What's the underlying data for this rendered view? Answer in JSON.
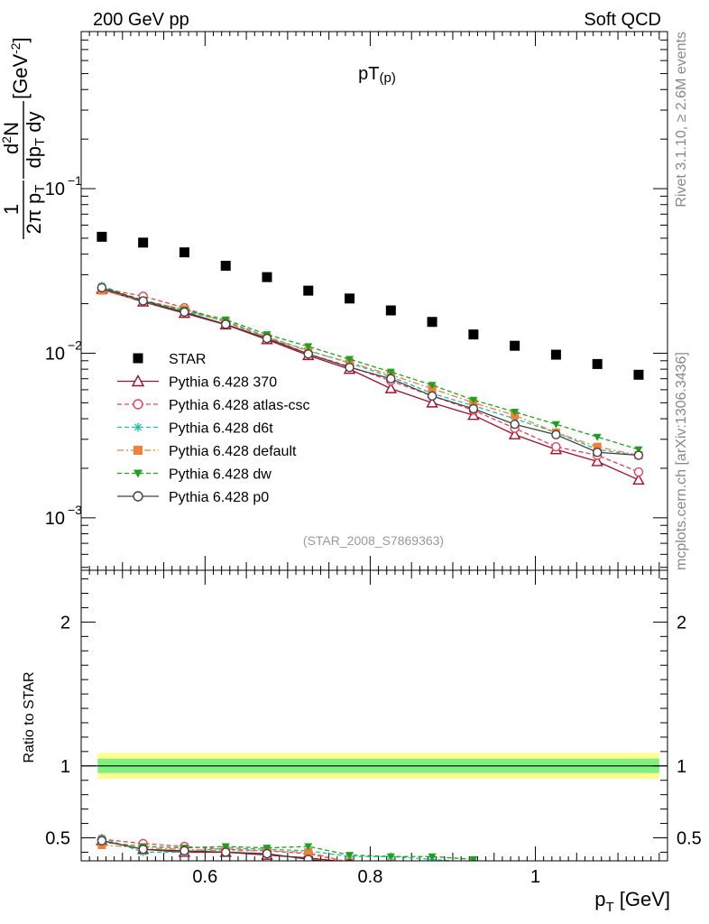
{
  "header": {
    "left": "200 GeV pp",
    "right": "Soft QCD"
  },
  "side_labels": {
    "rivet": "Rivet 3.1.10, ≥ 2.6M events",
    "mcplots": "mcplots.cern.ch [arXiv:1306.3436]"
  },
  "chart_data": [
    {
      "panel": "main",
      "type": "scatter",
      "title": "pT(p)",
      "title_main": "pT",
      "title_sub": "(p)",
      "analysis_label": "(STAR_2008_S7869363)",
      "ylabel": "1/(2π pT) d²N/(dpT dy) [GeV^-2]",
      "yscale": "log",
      "ylim": [
        0.00048,
        0.9
      ],
      "xlim": [
        0.45,
        1.16
      ],
      "ytick_labels": [
        "10^-3",
        "10^-2",
        "10^-1"
      ],
      "legend_position": "bottom-left",
      "x": [
        0.475,
        0.525,
        0.575,
        0.625,
        0.675,
        0.725,
        0.775,
        0.825,
        0.875,
        0.925,
        0.975,
        1.025,
        1.075,
        1.125
      ],
      "series": [
        {
          "name": "STAR",
          "color": "#000000",
          "marker": "square-filled",
          "line": "none",
          "values": [
            0.051,
            0.047,
            0.041,
            0.034,
            0.029,
            0.024,
            0.0215,
            0.0182,
            0.0155,
            0.013,
            0.0111,
            0.0098,
            0.0086,
            0.0074
          ]
        },
        {
          "name": "Pythia 6.428 370",
          "color": "#a0102a",
          "marker": "triangle-open",
          "line": "solid",
          "values": [
            0.0245,
            0.0205,
            0.0175,
            0.0149,
            0.0121,
            0.0097,
            0.008,
            0.0061,
            0.005,
            0.0042,
            0.0032,
            0.0026,
            0.0022,
            0.0017
          ]
        },
        {
          "name": "Pythia 6.428 atlas-csc",
          "color": "#e8405a",
          "marker": "circle-open",
          "line": "dashed",
          "values": [
            0.0248,
            0.0222,
            0.0189,
            0.0154,
            0.0125,
            0.0099,
            0.0083,
            0.0068,
            0.0055,
            0.0045,
            0.0035,
            0.0027,
            0.0024,
            0.0019
          ]
        },
        {
          "name": "Pythia 6.428 d6t",
          "color": "#20c0a0",
          "marker": "star",
          "line": "dashed",
          "values": [
            0.0258,
            0.0205,
            0.018,
            0.0157,
            0.0126,
            0.0104,
            0.0087,
            0.0072,
            0.0057,
            0.0048,
            0.004,
            0.0033,
            0.0026,
            0.0024
          ]
        },
        {
          "name": "Pythia 6.428 default",
          "color": "#f08040",
          "marker": "square-filled",
          "line": "dashdot",
          "values": [
            0.024,
            0.0208,
            0.0185,
            0.0155,
            0.0125,
            0.0103,
            0.0088,
            0.0074,
            0.0061,
            0.005,
            0.0042,
            0.0033,
            0.0027,
            0.0024
          ]
        },
        {
          "name": "Pythia 6.428 dw",
          "color": "#20a020",
          "marker": "triangle-down-filled",
          "line": "dashed",
          "values": [
            0.0252,
            0.021,
            0.0183,
            0.016,
            0.013,
            0.011,
            0.0092,
            0.0077,
            0.0064,
            0.0052,
            0.0044,
            0.0037,
            0.0031,
            0.0026
          ]
        },
        {
          "name": "Pythia 6.428 p0",
          "color": "#404040",
          "marker": "circle-open",
          "line": "solid",
          "values": [
            0.025,
            0.0208,
            0.0178,
            0.015,
            0.0123,
            0.0099,
            0.0082,
            0.007,
            0.0055,
            0.0046,
            0.0037,
            0.0032,
            0.0025,
            0.0024
          ]
        }
      ]
    },
    {
      "panel": "ratio",
      "type": "line",
      "ylabel": "Ratio to STAR",
      "xlabel": "p_T [GeV]",
      "xlabel_main": "p",
      "xlabel_sub": "T",
      "xlabel_unit": "[GeV]",
      "ylim": [
        0.34,
        2.36
      ],
      "xlim": [
        0.45,
        1.16
      ],
      "xtick_labels": [
        "0.6",
        "0.8",
        "1"
      ],
      "ytick_labels": [
        "0.5",
        "1",
        "2"
      ],
      "reference": 1.0,
      "band_inner": [
        0.95,
        1.05
      ],
      "band_outer": [
        0.91,
        1.09
      ],
      "band_inner_color": "#80f080",
      "band_outer_color": "#ffff90",
      "x": [
        0.475,
        0.525,
        0.575,
        0.625,
        0.675,
        0.725,
        0.775,
        0.825,
        0.875,
        0.925
      ],
      "series": [
        {
          "name": "Pythia 6.428 370",
          "color": "#a0102a",
          "marker": "triangle-open",
          "line": "solid",
          "values": [
            0.48,
            0.42,
            0.4,
            0.4,
            0.38,
            0.36,
            0.33,
            0.3,
            0.28,
            0.27
          ]
        },
        {
          "name": "Pythia 6.428 atlas-csc",
          "color": "#e8405a",
          "marker": "circle-open",
          "line": "dashed",
          "values": [
            0.49,
            0.46,
            0.44,
            0.42,
            0.41,
            0.39,
            0.33,
            0.31,
            0.3,
            0.29
          ]
        },
        {
          "name": "Pythia 6.428 d6t",
          "color": "#20c0a0",
          "marker": "star",
          "line": "dashed",
          "values": [
            0.5,
            0.4,
            0.4,
            0.43,
            0.42,
            0.41,
            0.37,
            0.37,
            0.35,
            0.33
          ]
        },
        {
          "name": "Pythia 6.428 default",
          "color": "#f08040",
          "marker": "square-filled",
          "line": "dashdot",
          "values": [
            0.45,
            0.43,
            0.42,
            0.41,
            0.41,
            0.4,
            0.33,
            0.32,
            0.31,
            0.3
          ]
        },
        {
          "name": "Pythia 6.428 dw",
          "color": "#20a020",
          "marker": "triangle-down-filled",
          "line": "dashed",
          "values": [
            0.47,
            0.44,
            0.43,
            0.44,
            0.43,
            0.44,
            0.38,
            0.37,
            0.37,
            0.35
          ]
        },
        {
          "name": "Pythia 6.428 p0",
          "color": "#404040",
          "marker": "circle-open",
          "line": "solid",
          "values": [
            0.48,
            0.42,
            0.41,
            0.4,
            0.39,
            0.35,
            0.32,
            0.31,
            0.29,
            0.28
          ]
        }
      ]
    }
  ]
}
